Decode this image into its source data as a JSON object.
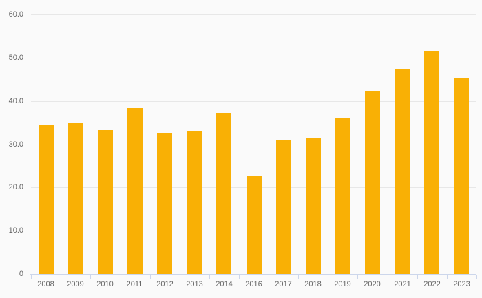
{
  "chart_data": {
    "type": "bar",
    "title": "",
    "categories": [
      "2008",
      "2009",
      "2010",
      "2011",
      "2012",
      "2013",
      "2014",
      "2016",
      "2017",
      "2018",
      "2019",
      "2020",
      "2021",
      "2022",
      "2023"
    ],
    "values": [
      34.4,
      34.9,
      33.3,
      38.3,
      32.7,
      33.0,
      37.2,
      22.6,
      31.1,
      31.4,
      36.2,
      42.3,
      47.5,
      51.6,
      45.4
    ],
    "xlabel": "",
    "ylabel": "",
    "ylim": [
      0,
      60
    ],
    "ytick_interval": 10,
    "ytick_labels": [
      "0",
      "10.0",
      "20.0",
      "30.0",
      "40.0",
      "50.0",
      "60.0"
    ],
    "grid": true,
    "legend": false,
    "colors": {
      "bar": "#f9b005",
      "background": "#fafafa",
      "gridline": "#e7e7e7",
      "axis_line": "#ccd6eb",
      "tick": "#ccd6eb",
      "label": "#666666"
    }
  }
}
